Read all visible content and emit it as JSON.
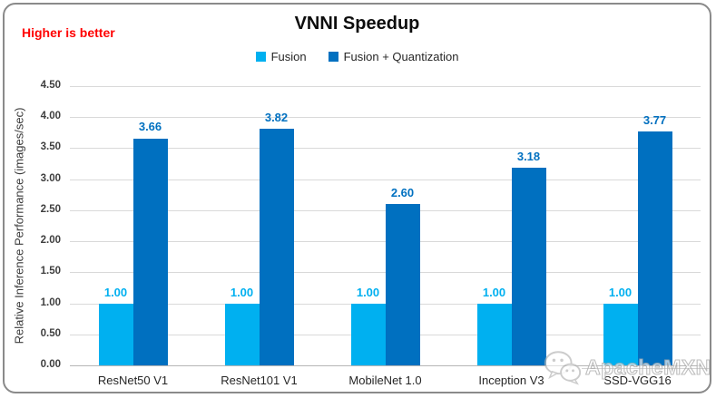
{
  "annotations": {
    "note": "Higher is better",
    "note_color": "#FF0000"
  },
  "chart_data": {
    "type": "bar",
    "title": "VNNI Speedup",
    "categories": [
      "ResNet50 V1",
      "ResNet101 V1",
      "MobileNet 1.0",
      "Inception V3",
      "SSD-VGG16"
    ],
    "series": [
      {
        "name": "Fusion",
        "color": "#00B0F0",
        "values": [
          1.0,
          1.0,
          1.0,
          1.0,
          1.0
        ]
      },
      {
        "name": "Fusion + Quantization",
        "color": "#0070C0",
        "values": [
          3.66,
          3.82,
          2.6,
          3.18,
          3.77
        ]
      }
    ],
    "ylabel": "Relative Inference Performance (images/sec)",
    "xlabel": "",
    "ylim": [
      0,
      4.5
    ],
    "ytick_step": 0.5,
    "ytick_labels": [
      "0.00",
      "0.50",
      "1.00",
      "1.50",
      "2.00",
      "2.50",
      "3.00",
      "3.50",
      "4.00",
      "4.50"
    ],
    "value_label_decimals": 2,
    "grid": true,
    "grid_color": "#D9D9D9",
    "axis_line_color": "#B5B5B5",
    "legend_position": "top-center"
  },
  "watermark": {
    "text": "ApacheMXNet",
    "logo": "chat-bubbles-icon"
  }
}
